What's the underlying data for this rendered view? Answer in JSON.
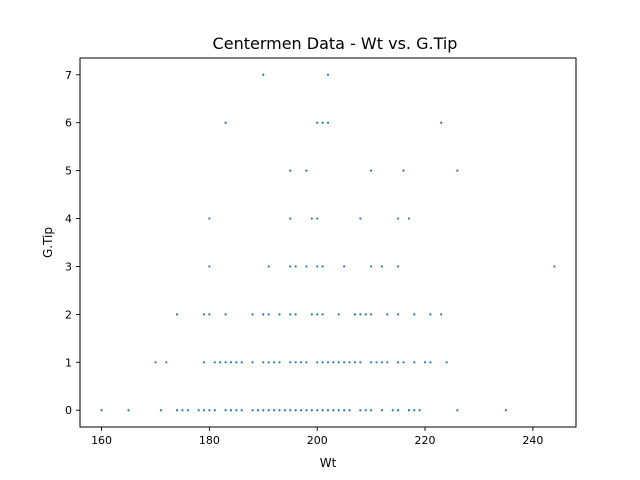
{
  "chart_data": {
    "type": "scatter",
    "title": "Centermen Data - Wt vs. G.Tip",
    "xlabel": "Wt",
    "ylabel": "G.Tip",
    "xlim": [
      156,
      248
    ],
    "ylim": [
      -0.35,
      7.35
    ],
    "xticks": [
      160,
      180,
      200,
      220,
      240
    ],
    "yticks": [
      0,
      1,
      2,
      3,
      4,
      5,
      6,
      7
    ],
    "grid": false,
    "marker_color": "#1f77b4",
    "points": [
      [
        160,
        0
      ],
      [
        165,
        0
      ],
      [
        171,
        0
      ],
      [
        174,
        0
      ],
      [
        175,
        0
      ],
      [
        176,
        0
      ],
      [
        178,
        0
      ],
      [
        179,
        0
      ],
      [
        180,
        0
      ],
      [
        181,
        0
      ],
      [
        183,
        0
      ],
      [
        184,
        0
      ],
      [
        185,
        0
      ],
      [
        186,
        0
      ],
      [
        188,
        0
      ],
      [
        189,
        0
      ],
      [
        190,
        0
      ],
      [
        191,
        0
      ],
      [
        192,
        0
      ],
      [
        193,
        0
      ],
      [
        194,
        0
      ],
      [
        195,
        0
      ],
      [
        196,
        0
      ],
      [
        197,
        0
      ],
      [
        198,
        0
      ],
      [
        199,
        0
      ],
      [
        200,
        0
      ],
      [
        201,
        0
      ],
      [
        202,
        0
      ],
      [
        203,
        0
      ],
      [
        204,
        0
      ],
      [
        205,
        0
      ],
      [
        206,
        0
      ],
      [
        208,
        0
      ],
      [
        209,
        0
      ],
      [
        210,
        0
      ],
      [
        212,
        0
      ],
      [
        214,
        0
      ],
      [
        215,
        0
      ],
      [
        217,
        0
      ],
      [
        218,
        0
      ],
      [
        219,
        0
      ],
      [
        226,
        0
      ],
      [
        235,
        0
      ],
      [
        170,
        1
      ],
      [
        172,
        1
      ],
      [
        179,
        1
      ],
      [
        181,
        1
      ],
      [
        182,
        1
      ],
      [
        183,
        1
      ],
      [
        184,
        1
      ],
      [
        185,
        1
      ],
      [
        186,
        1
      ],
      [
        188,
        1
      ],
      [
        190,
        1
      ],
      [
        191,
        1
      ],
      [
        192,
        1
      ],
      [
        193,
        1
      ],
      [
        195,
        1
      ],
      [
        196,
        1
      ],
      [
        197,
        1
      ],
      [
        198,
        1
      ],
      [
        200,
        1
      ],
      [
        201,
        1
      ],
      [
        202,
        1
      ],
      [
        203,
        1
      ],
      [
        204,
        1
      ],
      [
        205,
        1
      ],
      [
        206,
        1
      ],
      [
        207,
        1
      ],
      [
        208,
        1
      ],
      [
        210,
        1
      ],
      [
        211,
        1
      ],
      [
        212,
        1
      ],
      [
        213,
        1
      ],
      [
        215,
        1
      ],
      [
        216,
        1
      ],
      [
        218,
        1
      ],
      [
        220,
        1
      ],
      [
        221,
        1
      ],
      [
        224,
        1
      ],
      [
        174,
        2
      ],
      [
        179,
        2
      ],
      [
        180,
        2
      ],
      [
        183,
        2
      ],
      [
        188,
        2
      ],
      [
        190,
        2
      ],
      [
        191,
        2
      ],
      [
        193,
        2
      ],
      [
        195,
        2
      ],
      [
        196,
        2
      ],
      [
        199,
        2
      ],
      [
        200,
        2
      ],
      [
        201,
        2
      ],
      [
        204,
        2
      ],
      [
        207,
        2
      ],
      [
        208,
        2
      ],
      [
        209,
        2
      ],
      [
        210,
        2
      ],
      [
        213,
        2
      ],
      [
        215,
        2
      ],
      [
        218,
        2
      ],
      [
        221,
        2
      ],
      [
        223,
        2
      ],
      [
        180,
        3
      ],
      [
        191,
        3
      ],
      [
        195,
        3
      ],
      [
        196,
        3
      ],
      [
        198,
        3
      ],
      [
        200,
        3
      ],
      [
        201,
        3
      ],
      [
        205,
        3
      ],
      [
        210,
        3
      ],
      [
        212,
        3
      ],
      [
        215,
        3
      ],
      [
        244,
        3
      ],
      [
        180,
        4
      ],
      [
        195,
        4
      ],
      [
        199,
        4
      ],
      [
        200,
        4
      ],
      [
        208,
        4
      ],
      [
        215,
        4
      ],
      [
        217,
        4
      ],
      [
        195,
        5
      ],
      [
        198,
        5
      ],
      [
        210,
        5
      ],
      [
        216,
        5
      ],
      [
        226,
        5
      ],
      [
        183,
        6
      ],
      [
        200,
        6
      ],
      [
        201,
        6
      ],
      [
        202,
        6
      ],
      [
        223,
        6
      ],
      [
        190,
        7
      ],
      [
        202,
        7
      ]
    ]
  }
}
